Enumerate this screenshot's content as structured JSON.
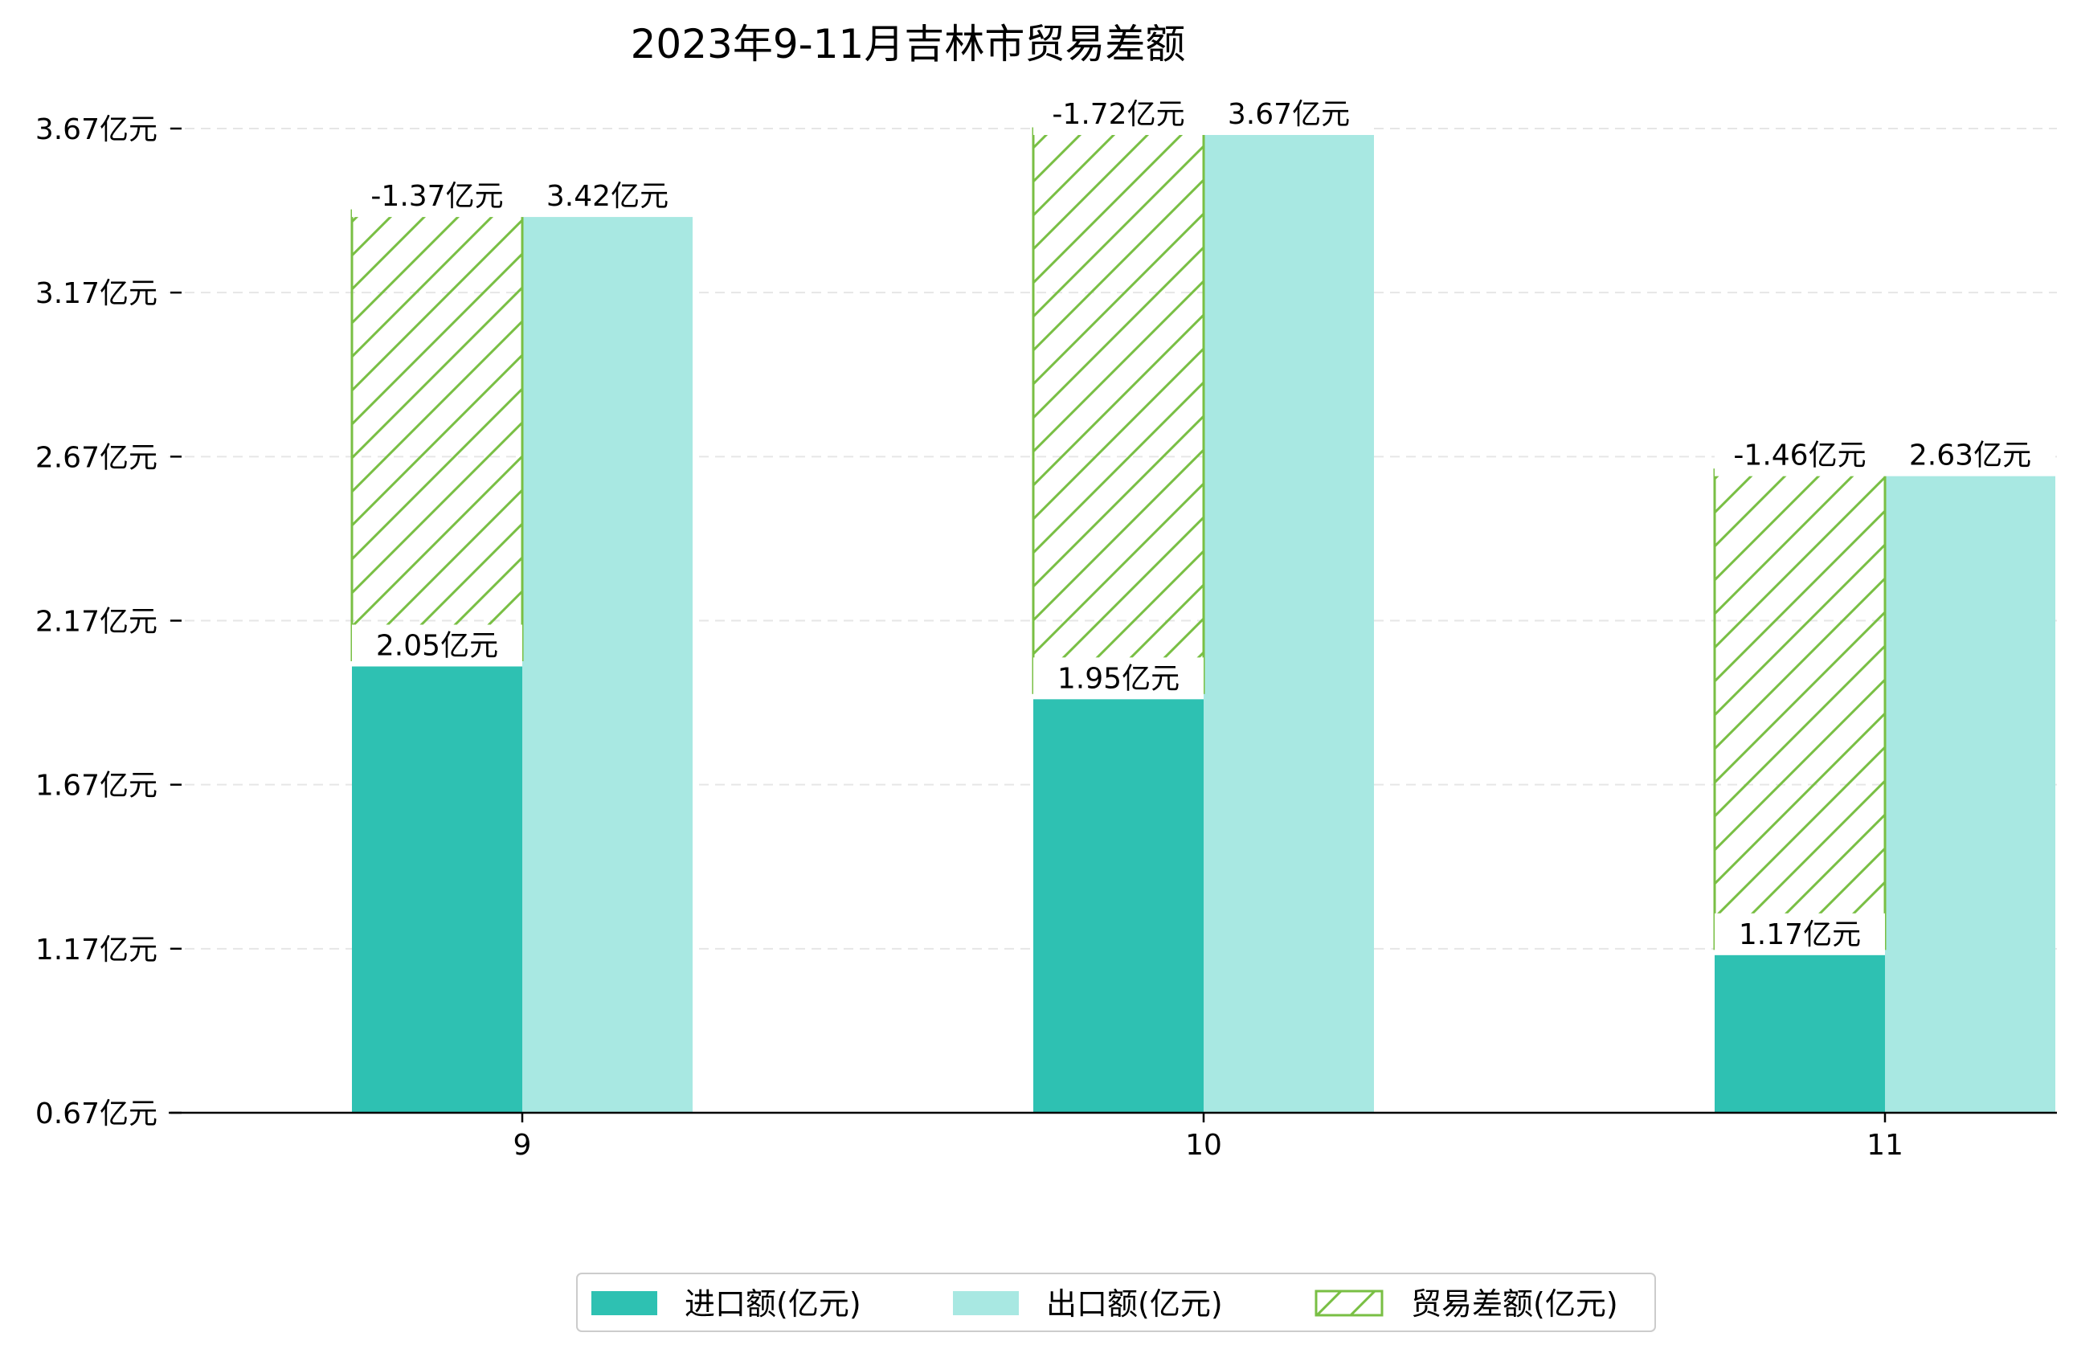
{
  "colors": {
    "import": "#2ec1b2",
    "export": "#a8e8e2",
    "balance": "#79bf44",
    "grid": "#e6e6e6",
    "axis": "#000000"
  },
  "chart_data": {
    "type": "bar",
    "title": "2023年9-11月吉林市贸易差额",
    "categories": [
      "9",
      "10",
      "11"
    ],
    "ylim": [
      0.67,
      3.67
    ],
    "yticks": [
      0.67,
      1.17,
      1.67,
      2.17,
      2.67,
      3.17,
      3.67
    ],
    "ytick_labels": [
      "0.67亿元",
      "1.17亿元",
      "1.67亿元",
      "2.17亿元",
      "2.67亿元",
      "3.17亿元",
      "3.67亿元"
    ],
    "grid": "horizontal dashed",
    "legend_position": "bottom-center",
    "series": [
      {
        "name": "进口额(亿元)",
        "values": [
          2.05,
          1.95,
          1.17
        ],
        "labels": [
          "2.05亿元",
          "1.95亿元",
          "1.17亿元"
        ]
      },
      {
        "name": "出口额(亿元)",
        "values": [
          3.42,
          3.67,
          2.63
        ],
        "labels": [
          "3.42亿元",
          "3.67亿元",
          "2.63亿元"
        ]
      },
      {
        "name": "贸易差额(亿元)",
        "values": [
          -1.37,
          -1.72,
          -1.46
        ],
        "labels": [
          "-1.37亿元",
          "-1.72亿元",
          "-1.46亿元"
        ]
      }
    ]
  }
}
